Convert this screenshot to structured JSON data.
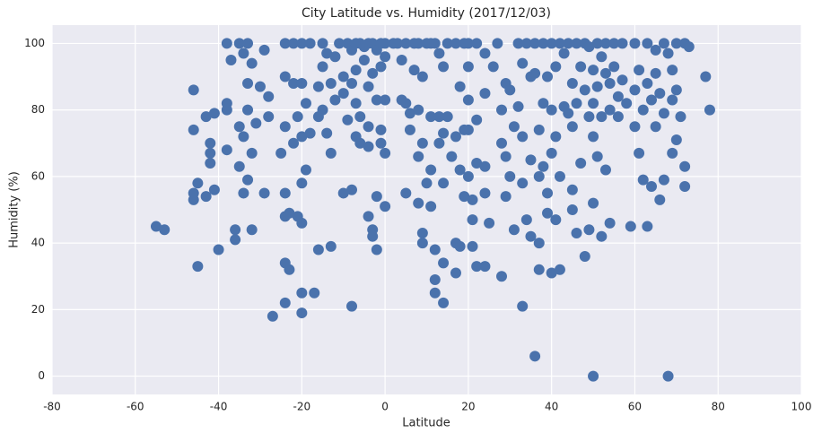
{
  "chart_data": {
    "type": "scatter",
    "title": "City Latitude vs. Humidity (2017/12/03)",
    "x_label": "Latitude",
    "y_label": "Humidity (%)",
    "color": "#4a72ac",
    "grid": true,
    "xlim": [
      -80,
      100
    ],
    "xticks": [
      -80,
      -60,
      -40,
      -20,
      0,
      20,
      40,
      60,
      80,
      100
    ],
    "ylim": [
      -5.5,
      105.5
    ],
    "yticks": [
      0,
      20,
      40,
      60,
      80,
      100
    ],
    "x": [
      -55,
      -53,
      -46,
      -46,
      -46,
      -46,
      -45,
      -45,
      -43,
      -43,
      -42,
      -42,
      -42,
      -41,
      -41,
      -40,
      -38,
      -38,
      -38,
      -38,
      -37,
      -36,
      -36,
      -35,
      -35,
      -35,
      -34,
      -34,
      -34,
      -33,
      -33,
      -33,
      -33,
      -32,
      -32,
      -32,
      -31,
      -30,
      -29,
      -29,
      -28,
      -28,
      -27,
      -25,
      -24,
      -24,
      -24,
      -24,
      -24,
      -24,
      -24,
      -23,
      -23,
      -22,
      -22,
      -22,
      -21,
      -21,
      -20,
      -20,
      -20,
      -20,
      -20,
      -20,
      -20,
      -19,
      -19,
      -18,
      -18,
      -17,
      -16,
      -16,
      -16,
      -15,
      -15,
      -15,
      -14,
      -14,
      -13,
      -13,
      -13,
      -12,
      -12,
      -11,
      -10,
      -10,
      -10,
      -9,
      -9,
      -8,
      -8,
      -8,
      -8,
      -7,
      -7,
      -7,
      -7,
      -6,
      -6,
      -6,
      -5,
      -5,
      -4,
      -4,
      -4,
      -4,
      -4,
      -3,
      -3,
      -3,
      -3,
      -2,
      -2,
      -2,
      -2,
      -1,
      -1,
      -1,
      -1,
      0,
      0,
      0,
      0,
      0,
      2,
      3,
      4,
      4,
      5,
      5,
      5,
      6,
      6,
      7,
      7,
      8,
      8,
      8,
      8,
      9,
      9,
      9,
      9,
      10,
      10,
      11,
      11,
      11,
      11,
      12,
      12,
      12,
      12,
      13,
      13,
      13,
      14,
      14,
      14,
      14,
      14,
      15,
      15,
      16,
      17,
      17,
      17,
      17,
      18,
      18,
      18,
      19,
      19,
      19,
      20,
      20,
      20,
      20,
      20,
      21,
      21,
      21,
      22,
      22,
      22,
      22,
      24,
      24,
      24,
      24,
      24,
      25,
      26,
      27,
      28,
      28,
      28,
      29,
      29,
      29,
      30,
      30,
      31,
      31,
      32,
      32,
      33,
      33,
      33,
      33,
      34,
      34,
      35,
      35,
      35,
      36,
      36,
      36,
      37,
      37,
      37,
      37,
      38,
      38,
      38,
      39,
      39,
      39,
      40,
      40,
      40,
      40,
      41,
      41,
      41,
      42,
      42,
      42,
      43,
      43,
      44,
      44,
      45,
      45,
      45,
      45,
      46,
      46,
      46,
      47,
      47,
      48,
      48,
      48,
      49,
      49,
      49,
      50,
      50,
      50,
      50,
      50,
      51,
      51,
      51,
      52,
      52,
      52,
      53,
      53,
      53,
      54,
      54,
      54,
      55,
      55,
      56,
      56,
      57,
      57,
      58,
      59,
      60,
      60,
      60,
      61,
      61,
      62,
      62,
      63,
      63,
      63,
      64,
      64,
      65,
      65,
      65,
      66,
      66,
      67,
      67,
      67,
      68,
      68,
      69,
      69,
      69,
      70,
      70,
      70,
      71,
      72,
      72,
      72,
      73,
      77,
      78
    ],
    "values": [
      45,
      44,
      86,
      74,
      55,
      53,
      58,
      33,
      78,
      54,
      70,
      67,
      64,
      79,
      56,
      38,
      100,
      82,
      80,
      68,
      95,
      44,
      41,
      100,
      75,
      63,
      97,
      72,
      55,
      100,
      88,
      80,
      59,
      94,
      67,
      44,
      76,
      87,
      98,
      55,
      84,
      78,
      18,
      67,
      100,
      90,
      75,
      55,
      48,
      34,
      22,
      49,
      32,
      100,
      88,
      70,
      78,
      48,
      100,
      88,
      72,
      58,
      46,
      25,
      19,
      82,
      62,
      100,
      73,
      25,
      87,
      78,
      38,
      100,
      93,
      80,
      97,
      73,
      88,
      67,
      39,
      96,
      83,
      100,
      90,
      85,
      55,
      100,
      77,
      98,
      88,
      56,
      21,
      100,
      92,
      82,
      72,
      100,
      78,
      70,
      99,
      95,
      100,
      87,
      75,
      69,
      48,
      100,
      91,
      44,
      42,
      98,
      83,
      54,
      38,
      100,
      93,
      74,
      70,
      100,
      96,
      83,
      67,
      51,
      100,
      100,
      95,
      83,
      100,
      82,
      55,
      79,
      74,
      100,
      92,
      100,
      80,
      66,
      52,
      90,
      70,
      43,
      40,
      100,
      58,
      100,
      78,
      62,
      51,
      100,
      38,
      29,
      25,
      97,
      78,
      70,
      93,
      73,
      58,
      34,
      22,
      100,
      78,
      66,
      100,
      72,
      40,
      31,
      87,
      62,
      39,
      100,
      74,
      54,
      100,
      93,
      83,
      74,
      60,
      53,
      47,
      39,
      100,
      77,
      64,
      33,
      97,
      85,
      63,
      55,
      33,
      46,
      93,
      100,
      80,
      70,
      30,
      88,
      66,
      54,
      86,
      60,
      75,
      44,
      100,
      81,
      94,
      72,
      58,
      21,
      100,
      47,
      90,
      65,
      42,
      100,
      91,
      6,
      74,
      60,
      40,
      32,
      100,
      82,
      63,
      90,
      55,
      49,
      100,
      80,
      67,
      31,
      93,
      72,
      47,
      100,
      60,
      32,
      97,
      81,
      100,
      79,
      88,
      75,
      56,
      50,
      100,
      82,
      43,
      93,
      64,
      100,
      86,
      36,
      99,
      78,
      44,
      92,
      82,
      72,
      52,
      0,
      100,
      87,
      66,
      96,
      78,
      42,
      100,
      91,
      62,
      88,
      80,
      46,
      100,
      93,
      84,
      78,
      100,
      89,
      82,
      45,
      100,
      86,
      75,
      92,
      67,
      80,
      59,
      100,
      88,
      45,
      83,
      57,
      98,
      91,
      75,
      85,
      53,
      100,
      79,
      59,
      97,
      0,
      92,
      83,
      67,
      100,
      86,
      71,
      78,
      100,
      63,
      57,
      99,
      90,
      80
    ]
  }
}
